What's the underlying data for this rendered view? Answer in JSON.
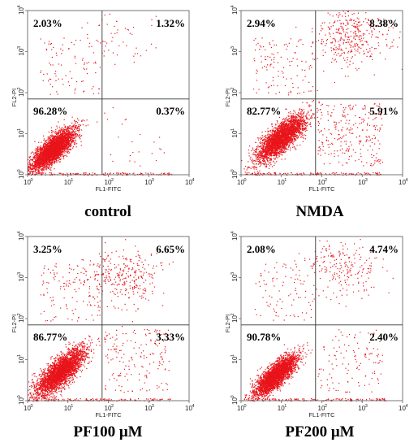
{
  "chart_data": [
    {
      "type": "scatter",
      "caption": "control",
      "xlabel": "FL1-FITC",
      "ylabel": "FL2-PI",
      "x_scale": "log",
      "y_scale": "log",
      "xlim": [
        1,
        10000
      ],
      "ylim": [
        1,
        10000
      ],
      "x_ticks": [
        {
          "base": "10",
          "exp": "0"
        },
        {
          "base": "10",
          "exp": "1"
        },
        {
          "base": "10",
          "exp": "2"
        },
        {
          "base": "10",
          "exp": "3"
        },
        {
          "base": "10",
          "exp": "4"
        }
      ],
      "y_ticks": [
        {
          "base": "10",
          "exp": "0"
        },
        {
          "base": "10",
          "exp": "1"
        },
        {
          "base": "10",
          "exp": "2"
        },
        {
          "base": "10",
          "exp": "3"
        },
        {
          "base": "10",
          "exp": "4"
        }
      ],
      "gate": {
        "x": 70,
        "y": 70
      },
      "quadrants": {
        "upper_left": "2.03%",
        "upper_right": "1.32%",
        "lower_left": "96.28%",
        "lower_right": "0.37%"
      },
      "point_color": "#e8141b"
    },
    {
      "type": "scatter",
      "caption": "NMDA",
      "xlabel": "FL1-FITC",
      "ylabel": "FL2-PI",
      "x_scale": "log",
      "y_scale": "log",
      "xlim": [
        1,
        10000
      ],
      "ylim": [
        1,
        10000
      ],
      "x_ticks": [
        {
          "base": "10",
          "exp": "0"
        },
        {
          "base": "10",
          "exp": "1"
        },
        {
          "base": "10",
          "exp": "2"
        },
        {
          "base": "10",
          "exp": "3"
        },
        {
          "base": "10",
          "exp": "4"
        }
      ],
      "y_ticks": [
        {
          "base": "10",
          "exp": "0"
        },
        {
          "base": "10",
          "exp": "1"
        },
        {
          "base": "10",
          "exp": "2"
        },
        {
          "base": "10",
          "exp": "3"
        },
        {
          "base": "10",
          "exp": "4"
        }
      ],
      "gate": {
        "x": 70,
        "y": 70
      },
      "quadrants": {
        "upper_left": "2.94%",
        "upper_right": "8.38%",
        "lower_left": "82.77%",
        "lower_right": "5.91%"
      },
      "point_color": "#e8141b"
    },
    {
      "type": "scatter",
      "caption": "PF100 μM",
      "xlabel": "FL1-FITC",
      "ylabel": "FL2-PI",
      "x_scale": "log",
      "y_scale": "log",
      "xlim": [
        1,
        10000
      ],
      "ylim": [
        1,
        10000
      ],
      "x_ticks": [
        {
          "base": "10",
          "exp": "0"
        },
        {
          "base": "10",
          "exp": "1"
        },
        {
          "base": "10",
          "exp": "2"
        },
        {
          "base": "10",
          "exp": "3"
        },
        {
          "base": "10",
          "exp": "4"
        }
      ],
      "y_ticks": [
        {
          "base": "10",
          "exp": "0"
        },
        {
          "base": "10",
          "exp": "1"
        },
        {
          "base": "10",
          "exp": "2"
        },
        {
          "base": "10",
          "exp": "3"
        },
        {
          "base": "10",
          "exp": "4"
        }
      ],
      "gate": {
        "x": 70,
        "y": 70
      },
      "quadrants": {
        "upper_left": "3.25%",
        "upper_right": "6.65%",
        "lower_left": "86.77%",
        "lower_right": "3.33%"
      },
      "point_color": "#e8141b"
    },
    {
      "type": "scatter",
      "caption": "PF200 μM",
      "xlabel": "FL1-FITC",
      "ylabel": "FL2-PI",
      "x_scale": "log",
      "y_scale": "log",
      "xlim": [
        1,
        10000
      ],
      "ylim": [
        1,
        10000
      ],
      "x_ticks": [
        {
          "base": "10",
          "exp": "0"
        },
        {
          "base": "10",
          "exp": "1"
        },
        {
          "base": "10",
          "exp": "2"
        },
        {
          "base": "10",
          "exp": "3"
        },
        {
          "base": "10",
          "exp": "4"
        }
      ],
      "y_ticks": [
        {
          "base": "10",
          "exp": "0"
        },
        {
          "base": "10",
          "exp": "1"
        },
        {
          "base": "10",
          "exp": "2"
        },
        {
          "base": "10",
          "exp": "3"
        },
        {
          "base": "10",
          "exp": "4"
        }
      ],
      "gate": {
        "x": 70,
        "y": 70
      },
      "quadrants": {
        "upper_left": "2.08%",
        "upper_right": "4.74%",
        "lower_left": "90.78%",
        "lower_right": "2.40%"
      },
      "point_color": "#e8141b"
    }
  ]
}
